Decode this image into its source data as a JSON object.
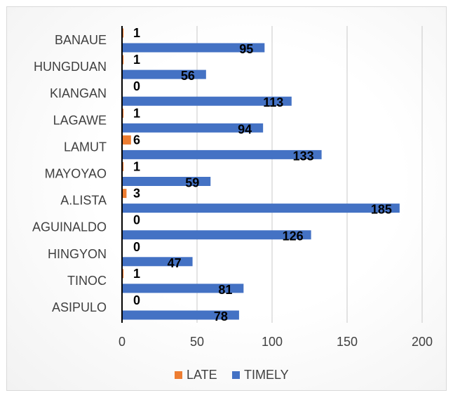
{
  "chart_data": {
    "type": "bar",
    "orientation": "horizontal",
    "title": "",
    "xlabel": "",
    "ylabel": "",
    "xlim": [
      0,
      200
    ],
    "x_ticks": [
      "0",
      "50",
      "100",
      "150",
      "200"
    ],
    "grid": true,
    "legend_position": "bottom",
    "categories": [
      "BANAUE",
      "HUNGDUAN",
      "KIANGAN",
      "LAGAWE",
      "LAMUT",
      "MAYOYAO",
      "A.LISTA",
      "AGUINALDO",
      "HINGYON",
      "TINOC",
      "ASIPULO"
    ],
    "series": [
      {
        "name": "LATE",
        "color": "#ed7d31",
        "values": [
          1,
          1,
          0,
          1,
          6,
          1,
          3,
          0,
          0,
          1,
          0
        ],
        "labels": [
          "1",
          "1",
          "0",
          "1",
          "6",
          "1",
          "3",
          "0",
          "0",
          "1",
          "0"
        ]
      },
      {
        "name": "TIMELY",
        "color": "#4472c4",
        "values": [
          95,
          56,
          113,
          94,
          133,
          59,
          185,
          126,
          47,
          81,
          78
        ],
        "labels": [
          "95",
          "56",
          "113",
          "94",
          "133",
          "59",
          "185",
          "126",
          "47",
          "81",
          "78"
        ]
      }
    ]
  }
}
